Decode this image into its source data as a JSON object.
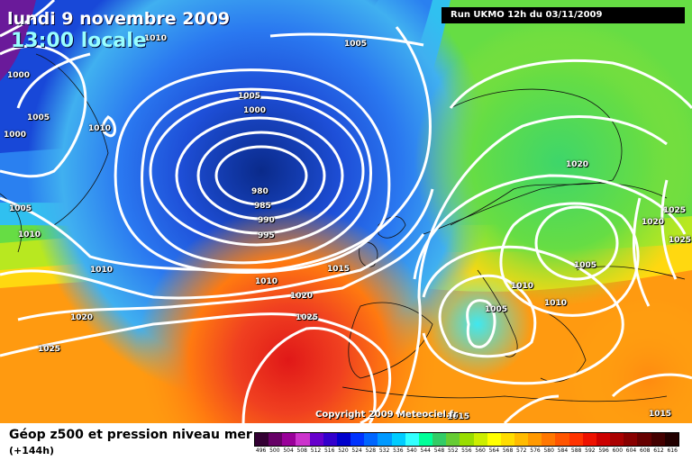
{
  "header": {
    "date": "lundi 9 novembre 2009",
    "time": "13:00 locale",
    "run": "Run UKMO 12h du 03/11/2009"
  },
  "copyright": "Copyright 2009 Meteociel.fr",
  "legend": {
    "title": "Géop z500 et pression niveau mer",
    "subtitle": "(+144h)",
    "ticks": [
      "496",
      "500",
      "504",
      "508",
      "512",
      "516",
      "520",
      "524",
      "528",
      "532",
      "536",
      "540",
      "544",
      "548",
      "552",
      "556",
      "560",
      "564",
      "568",
      "572",
      "576",
      "580",
      "584",
      "588",
      "592",
      "596",
      "600",
      "604",
      "608",
      "612",
      "616"
    ],
    "colors": [
      "#330033",
      "#660066",
      "#990099",
      "#cc33cc",
      "#6600cc",
      "#3300cc",
      "#0000cc",
      "#0033ff",
      "#0066ff",
      "#0099ff",
      "#00ccff",
      "#33ffff",
      "#00ff99",
      "#33cc66",
      "#66cc33",
      "#99dd00",
      "#ccee00",
      "#ffff00",
      "#ffdd00",
      "#ffbb00",
      "#ff9900",
      "#ff7700",
      "#ff5500",
      "#ff3300",
      "#ee1100",
      "#cc0000",
      "#aa0000",
      "#880000",
      "#660000",
      "#440000",
      "#220000"
    ]
  },
  "isobars": [
    {
      "label": "1010"
    },
    {
      "label": "1000"
    },
    {
      "label": "1005"
    },
    {
      "label": "1000"
    },
    {
      "label": "1010"
    },
    {
      "label": "1005"
    },
    {
      "label": "1005"
    },
    {
      "label": "1000"
    },
    {
      "label": "980"
    },
    {
      "label": "985"
    },
    {
      "label": "990"
    },
    {
      "label": "995"
    },
    {
      "label": "1005"
    },
    {
      "label": "1010"
    },
    {
      "label": "1010"
    },
    {
      "label": "1015"
    },
    {
      "label": "1010"
    },
    {
      "label": "1020"
    },
    {
      "label": "1020"
    },
    {
      "label": "1025"
    },
    {
      "label": "1025"
    },
    {
      "label": "1020"
    },
    {
      "label": "1020"
    },
    {
      "label": "1025"
    },
    {
      "label": "1025"
    },
    {
      "label": "1005"
    },
    {
      "label": "1010"
    },
    {
      "label": "1010"
    },
    {
      "label": "1005"
    },
    {
      "label": "1015"
    },
    {
      "label": "1015"
    }
  ]
}
